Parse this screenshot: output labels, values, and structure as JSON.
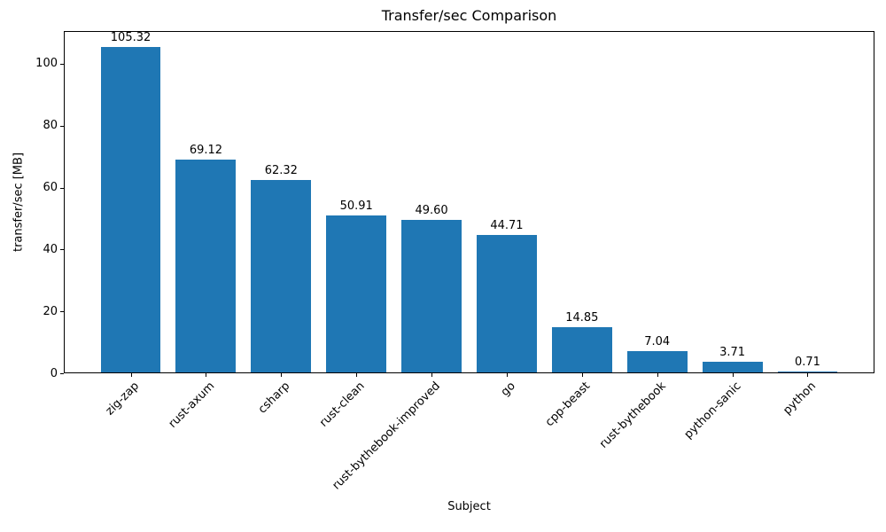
{
  "chart_data": {
    "type": "bar",
    "title": "Transfer/sec Comparison",
    "xlabel": "Subject",
    "ylabel": "transfer/sec [MB]",
    "categories": [
      "zig-zap",
      "rust-axum",
      "csharp",
      "rust-clean",
      "rust-bythebook-improved",
      "go",
      "cpp-beast",
      "rust-bythebook",
      "python-sanic",
      "python"
    ],
    "values": [
      105.32,
      69.12,
      62.32,
      50.91,
      49.6,
      44.71,
      14.85,
      7.04,
      3.71,
      0.71
    ],
    "value_labels": [
      "105.32",
      "69.12",
      "62.32",
      "50.91",
      "49.60",
      "44.71",
      "14.85",
      "7.04",
      "3.71",
      "0.71"
    ],
    "yticks": [
      0,
      20,
      40,
      60,
      80,
      100
    ],
    "ylim": [
      0,
      110.59
    ],
    "xlim": [
      -0.89,
      9.89
    ],
    "bar_width": 0.8,
    "bar_color": "#1f77b4",
    "axis_color": "#000000",
    "grid": false,
    "legend": null,
    "xtick_rotation": 45
  }
}
